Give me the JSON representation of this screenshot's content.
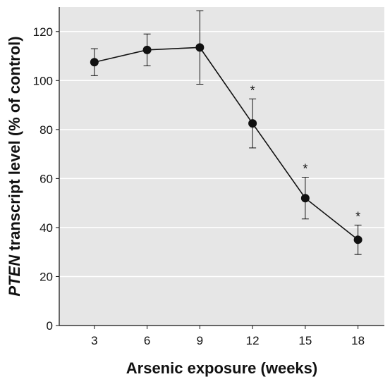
{
  "chart_data": {
    "type": "line",
    "xlabel": "Arsenic exposure (weeks)",
    "ylabel_italic": "PTEN",
    "ylabel_rest": " transcript level (% of control)",
    "x_ticks": [
      3,
      6,
      9,
      12,
      15,
      18
    ],
    "y_ticks": [
      0,
      20,
      40,
      60,
      80,
      100,
      120
    ],
    "xlim": [
      1,
      19.5
    ],
    "ylim": [
      0,
      130
    ],
    "grid": "horizontal",
    "background_color": "#e6e6e6",
    "line_color": "#111111",
    "series": [
      {
        "x": [
          3,
          6,
          9,
          12,
          15,
          18
        ],
        "y": [
          107.5,
          112.5,
          113.5,
          82.5,
          52,
          35
        ],
        "error": [
          5.5,
          6.5,
          15,
          10,
          8.5,
          6
        ],
        "significant": [
          false,
          false,
          false,
          true,
          true,
          true
        ]
      }
    ],
    "significance_marker": "*"
  }
}
